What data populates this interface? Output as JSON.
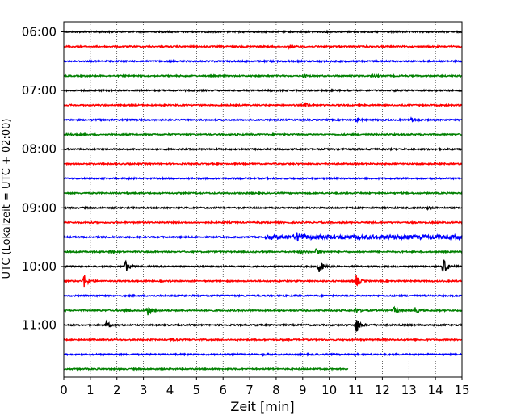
{
  "chart_data": {
    "type": "line",
    "title": "",
    "xlabel": "Zeit  [min]",
    "ylabel": "UTC (Lokalzeit = UTC + 02:00)",
    "xlim": [
      0,
      15
    ],
    "x_ticks": [
      "0",
      "1",
      "2",
      "3",
      "4",
      "5",
      "6",
      "7",
      "8",
      "9",
      "10",
      "11",
      "12",
      "13",
      "14",
      "15"
    ],
    "y_ticks": [
      "06:00",
      "07:00",
      "08:00",
      "09:00",
      "10:00",
      "11:00"
    ],
    "row_start": "06:00",
    "row_interval_min": 15,
    "rows": 24,
    "trace_colors": [
      "#000000",
      "#ff0000",
      "#0000ff",
      "#008000"
    ],
    "vertical_grid": "dotted",
    "last_row_end_min": 10.7,
    "events": [
      {
        "row": 1,
        "t": 8.5,
        "amp": 0.25
      },
      {
        "row": 3,
        "t": 9.0,
        "amp": 0.25
      },
      {
        "row": 3,
        "t": 11.6,
        "amp": 0.25
      },
      {
        "row": 5,
        "t": 9.1,
        "amp": 0.35
      },
      {
        "row": 6,
        "t": 11.0,
        "amp": 0.35
      },
      {
        "row": 6,
        "t": 13.1,
        "amp": 0.4
      },
      {
        "row": 7,
        "t": 0.15,
        "amp": 0.55
      },
      {
        "row": 12,
        "t": 13.7,
        "amp": 0.2
      },
      {
        "row": 14,
        "t": 8.8,
        "amp": 0.9
      },
      {
        "row": 15,
        "t": 1.7,
        "amp": 0.3
      },
      {
        "row": 15,
        "t": 8.9,
        "amp": 0.35
      },
      {
        "row": 15,
        "t": 9.5,
        "amp": 0.55
      },
      {
        "row": 16,
        "t": 2.3,
        "amp": 1.2
      },
      {
        "row": 16,
        "t": 9.6,
        "amp": 1.4
      },
      {
        "row": 16,
        "t": 14.3,
        "amp": 1.6
      },
      {
        "row": 17,
        "t": 0.75,
        "amp": 1.3
      },
      {
        "row": 17,
        "t": 11.0,
        "amp": 1.1
      },
      {
        "row": 19,
        "t": 2.3,
        "amp": 0.45
      },
      {
        "row": 19,
        "t": 3.15,
        "amp": 1.0
      },
      {
        "row": 19,
        "t": 11.0,
        "amp": 0.5
      },
      {
        "row": 19,
        "t": 12.4,
        "amp": 0.7
      },
      {
        "row": 19,
        "t": 13.2,
        "amp": 0.6
      },
      {
        "row": 20,
        "t": 1.6,
        "amp": 0.6
      },
      {
        "row": 20,
        "t": 11.0,
        "amp": 1.6
      },
      {
        "row": 21,
        "t": 4.0,
        "amp": 0.2
      },
      {
        "row": 22,
        "t": 7.5,
        "amp": 0.15
      }
    ],
    "noisy_segments": [
      {
        "row": 14,
        "from": 7.6,
        "to": 15.0,
        "amp": 0.3
      }
    ]
  }
}
